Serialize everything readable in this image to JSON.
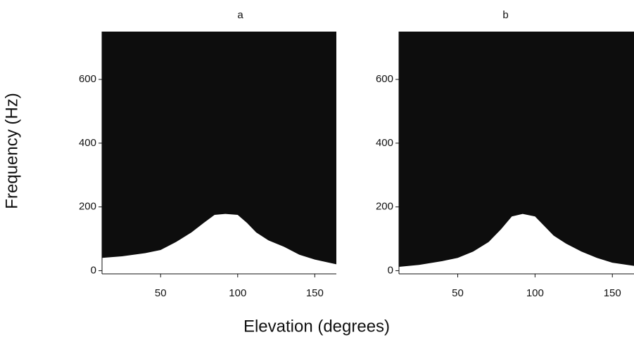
{
  "chart_data": [
    {
      "type": "area",
      "title": "a",
      "ylabel": "Frequency (Hz)",
      "xlabel": "Elevation (degrees)",
      "x": [
        12,
        25,
        40,
        50,
        60,
        70,
        78,
        85,
        92,
        100,
        106,
        112,
        120,
        130,
        140,
        150,
        164
      ],
      "values": [
        40,
        45,
        55,
        65,
        90,
        120,
        150,
        175,
        178,
        175,
        150,
        120,
        95,
        75,
        50,
        35,
        20
      ],
      "color": "#ffffff",
      "background": "#0d0d0d",
      "xlim": [
        12,
        164
      ],
      "ylim": [
        -10,
        750
      ],
      "xticks": [
        50,
        100,
        150
      ],
      "yticks": [
        0,
        200,
        400,
        600
      ]
    },
    {
      "type": "area",
      "title": "b",
      "x": [
        12,
        25,
        40,
        50,
        60,
        70,
        78,
        85,
        92,
        100,
        106,
        112,
        120,
        130,
        140,
        150,
        164
      ],
      "values": [
        12,
        18,
        30,
        40,
        60,
        90,
        130,
        170,
        178,
        170,
        140,
        110,
        85,
        60,
        40,
        25,
        15
      ],
      "color": "#ffffff",
      "background": "#0d0d0d",
      "xlim": [
        12,
        164
      ],
      "ylim": [
        -10,
        750
      ],
      "xticks": [
        50,
        100,
        150
      ],
      "yticks": [
        0,
        200,
        400,
        600
      ]
    }
  ]
}
